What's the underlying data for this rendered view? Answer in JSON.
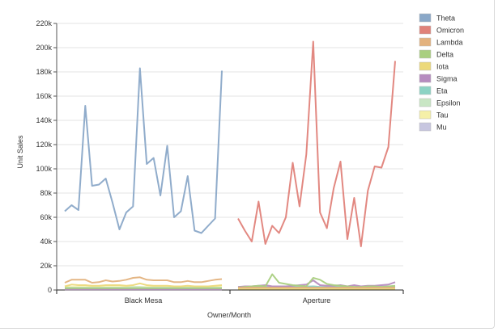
{
  "chart_data": {
    "type": "line",
    "xlabel": "Owner/Month",
    "ylabel": "Unit Sales",
    "ylim": [
      0,
      220000
    ],
    "y_ticks": [
      "0",
      "20k",
      "40k",
      "60k",
      "80k",
      "100k",
      "120k",
      "140k",
      "160k",
      "180k",
      "200k",
      "220k"
    ],
    "grid": true,
    "legend_position": "top-right",
    "groups": [
      {
        "name": "Black Mesa",
        "points": 24
      },
      {
        "name": "Aperture",
        "points": 24
      }
    ],
    "series": [
      {
        "name": "Theta",
        "color": "#8aa8c8",
        "groups": [
          [
            65000,
            70000,
            66000,
            152000,
            86000,
            87000,
            92000,
            72000,
            50000,
            64000,
            69000,
            183000,
            104000,
            109000,
            78000,
            119000,
            60000,
            65000,
            94000,
            49000,
            47000,
            53000,
            59000,
            181000
          ],
          []
        ]
      },
      {
        "name": "Omicron",
        "color": "#e0827a",
        "groups": [
          [],
          [
            59000,
            49000,
            40000,
            73000,
            38000,
            53000,
            47000,
            60000,
            105000,
            69000,
            112000,
            205000,
            64000,
            51000,
            84000,
            106000,
            42000,
            76000,
            36000,
            82000,
            102000,
            101000,
            118000,
            189000
          ]
        ]
      },
      {
        "name": "Lambda",
        "color": "#e3b27e",
        "groups": [
          [
            6000,
            8500,
            8500,
            8500,
            6000,
            6500,
            8000,
            7000,
            7500,
            8500,
            10000,
            10500,
            8500,
            8000,
            8000,
            8000,
            6500,
            6500,
            7500,
            6500,
            6500,
            7500,
            8500,
            9000
          ],
          [
            2000,
            2000,
            2000,
            2000,
            2000,
            2000,
            2000,
            2000,
            2000,
            2000,
            2000,
            2000,
            2000,
            2000,
            2000,
            2000,
            2000,
            2000,
            2000,
            2000,
            2000,
            2000,
            2000,
            2000
          ]
        ]
      },
      {
        "name": "Delta",
        "color": "#a9cf80",
        "groups": [
          [
            1500,
            1500,
            1500,
            1500,
            1500,
            1500,
            1500,
            1500,
            1500,
            1500,
            1500,
            1500,
            1500,
            1500,
            1500,
            1500,
            1500,
            1500,
            1500,
            1500,
            1500,
            1500,
            1500,
            1500
          ],
          [
            2000,
            2500,
            3000,
            3500,
            3000,
            13000,
            6000,
            5000,
            4000,
            3500,
            3000,
            10000,
            8500,
            5000,
            4000,
            3500,
            3000,
            2500,
            2500,
            3000,
            3000,
            2500,
            3000,
            3500
          ]
        ]
      },
      {
        "name": "Iota",
        "color": "#ecd97a",
        "groups": [
          [
            3000,
            4500,
            4000,
            4000,
            3500,
            3500,
            4000,
            4000,
            4000,
            3500,
            4000,
            5500,
            4000,
            3500,
            3500,
            3500,
            3000,
            3000,
            3500,
            3000,
            3000,
            3000,
            3500,
            4000
          ],
          [
            1000,
            1000,
            1000,
            1000,
            1000,
            1000,
            1000,
            1000,
            1000,
            1000,
            1000,
            1000,
            1000,
            1000,
            1000,
            1000,
            1000,
            1000,
            1000,
            1000,
            1000,
            1000,
            1000,
            1000
          ]
        ]
      },
      {
        "name": "Sigma",
        "color": "#b68cbf",
        "groups": [
          [
            500,
            500,
            500,
            500,
            500,
            500,
            500,
            500,
            500,
            500,
            500,
            500,
            500,
            500,
            500,
            500,
            500,
            500,
            500,
            500,
            500,
            500,
            500,
            500
          ],
          [
            2500,
            3000,
            3000,
            3500,
            4000,
            3000,
            3000,
            3000,
            3500,
            4000,
            4500,
            8000,
            4000,
            3500,
            3500,
            4000,
            3000,
            4000,
            3000,
            3500,
            3500,
            4000,
            4500,
            6500
          ]
        ]
      },
      {
        "name": "Eta",
        "color": "#8cd3c4",
        "groups": [
          [
            1000,
            1000,
            1000,
            1000,
            1000,
            1000,
            1000,
            1000,
            1000,
            1000,
            1000,
            1000,
            1000,
            1000,
            1000,
            1000,
            1000,
            1000,
            1000,
            1000,
            1000,
            1000,
            1000,
            1000
          ],
          [
            2500,
            2500,
            2500,
            2500,
            2500,
            2500,
            2500,
            3000,
            2500,
            2500,
            2500,
            3000,
            2500,
            2500,
            2500,
            2500,
            2500,
            2500,
            2500,
            2500,
            2500,
            2500,
            2500,
            2500
          ]
        ]
      },
      {
        "name": "Epsilon",
        "color": "#c8e6c4",
        "groups": [
          [
            2000,
            2000,
            2000,
            2000,
            2000,
            2000,
            2000,
            2000,
            2000,
            2000,
            2500,
            2500,
            2000,
            2000,
            2000,
            2000,
            2000,
            2000,
            2000,
            2000,
            2000,
            2000,
            2000,
            2000
          ],
          [
            1500,
            1500,
            1500,
            1500,
            1500,
            1500,
            1500,
            1500,
            1500,
            1500,
            1500,
            1500,
            1500,
            1500,
            1500,
            1500,
            1500,
            1500,
            1500,
            1500,
            1500,
            1500,
            1500,
            1500
          ]
        ]
      },
      {
        "name": "Tau",
        "color": "#f5f0a8",
        "groups": [
          [
            2500,
            2500,
            2500,
            2500,
            2500,
            2500,
            2500,
            2500,
            2500,
            2500,
            2500,
            2500,
            2500,
            2500,
            2500,
            2500,
            2500,
            2500,
            2500,
            2500,
            2500,
            2500,
            2500,
            2500
          ],
          [
            1000,
            1000,
            1000,
            1000,
            1000,
            1000,
            1000,
            1000,
            1000,
            1000,
            1000,
            1000,
            1000,
            1000,
            1000,
            1000,
            1000,
            1000,
            1000,
            1000,
            1000,
            1000,
            1000,
            1000
          ]
        ]
      },
      {
        "name": "Mu",
        "color": "#c7c6e0",
        "groups": [
          [
            1500,
            1500,
            1500,
            1500,
            1500,
            1500,
            1500,
            1500,
            1500,
            1500,
            1500,
            1500,
            1500,
            1500,
            1500,
            1500,
            1500,
            1500,
            1500,
            1500,
            1500,
            1500,
            1500,
            1500
          ],
          [
            2000,
            2000,
            2500,
            2500,
            2500,
            2500,
            3000,
            2500,
            2500,
            2500,
            3000,
            3000,
            2500,
            2500,
            2500,
            3000,
            2500,
            2500,
            3000,
            2500,
            2500,
            3000,
            3000,
            3000
          ]
        ]
      }
    ]
  }
}
